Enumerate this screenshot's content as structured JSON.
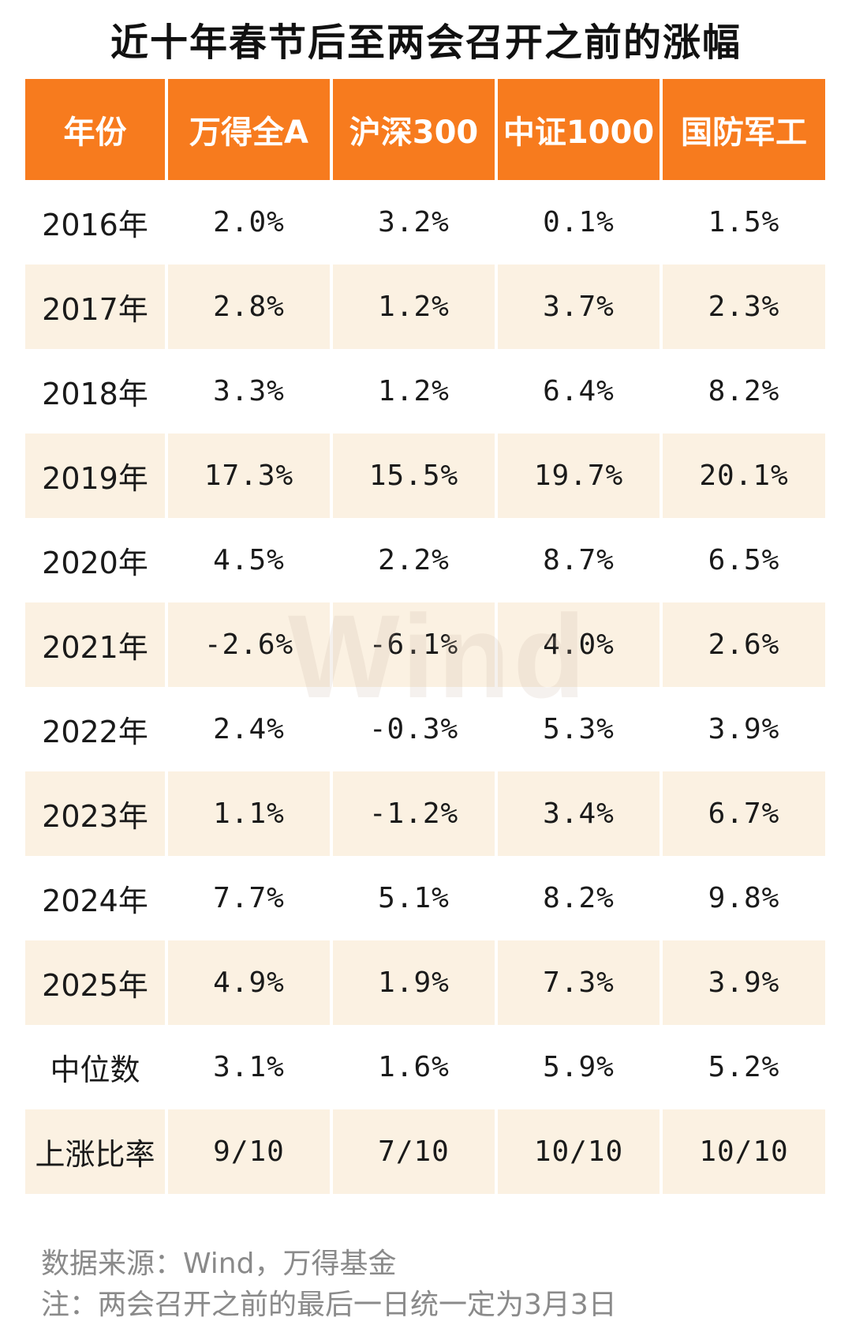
{
  "chart_data": {
    "type": "table",
    "title": "近十年春节后至两会召开之前的涨幅",
    "columns": [
      "年份",
      "万得全A",
      "沪深300",
      "中证1000",
      "国防军工"
    ],
    "rows": [
      [
        "2016年",
        "2.0%",
        "3.2%",
        "0.1%",
        "1.5%"
      ],
      [
        "2017年",
        "2.8%",
        "1.2%",
        "3.7%",
        "2.3%"
      ],
      [
        "2018年",
        "3.3%",
        "1.2%",
        "6.4%",
        "8.2%"
      ],
      [
        "2019年",
        "17.3%",
        "15.5%",
        "19.7%",
        "20.1%"
      ],
      [
        "2020年",
        "4.5%",
        "2.2%",
        "8.7%",
        "6.5%"
      ],
      [
        "2021年",
        "-2.6%",
        "-6.1%",
        "4.0%",
        "2.6%"
      ],
      [
        "2022年",
        "2.4%",
        "-0.3%",
        "5.3%",
        "3.9%"
      ],
      [
        "2023年",
        "1.1%",
        "-1.2%",
        "3.4%",
        "6.7%"
      ],
      [
        "2024年",
        "7.7%",
        "5.1%",
        "8.2%",
        "9.8%"
      ],
      [
        "2025年",
        "4.9%",
        "1.9%",
        "7.3%",
        "3.9%"
      ],
      [
        "中位数",
        "3.1%",
        "1.6%",
        "5.9%",
        "5.2%"
      ],
      [
        "上涨比率",
        "9/10",
        "7/10",
        "10/10",
        "10/10"
      ]
    ]
  },
  "watermark": "Wind",
  "notes": {
    "source": "数据来源：Wind，万得基金",
    "note": "注：两会召开之前的最后一日统一定为3月3日"
  },
  "colors": {
    "header_bg": "#f77b1e",
    "header_text": "#ffffff",
    "shaded_row_bg": "#fbf1e2",
    "note_text": "#8a8a8a"
  }
}
